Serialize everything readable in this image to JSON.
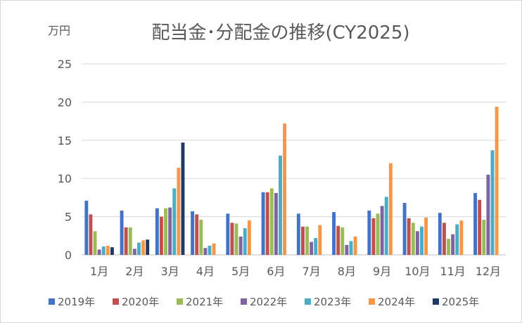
{
  "chart_data": {
    "type": "bar",
    "title": "配当金･分配金の推移(CY2025)",
    "yunit": "万円",
    "categories": [
      "1月",
      "2月",
      "3月",
      "4月",
      "5月",
      "6月",
      "7月",
      "8月",
      "9月",
      "10月",
      "11月",
      "12月"
    ],
    "ylim": [
      0,
      25
    ],
    "yticks": [
      "0",
      "5",
      "10",
      "15",
      "20",
      "25"
    ],
    "grid": true,
    "legend_position": "bottom",
    "series": [
      {
        "name": "2019年",
        "color": "#4472C4",
        "values": [
          7.1,
          5.8,
          6.1,
          5.7,
          5.4,
          8.2,
          5.4,
          5.6,
          5.8,
          6.8,
          5.5,
          8.1
        ]
      },
      {
        "name": "2020年",
        "color": "#C0504D",
        "values": [
          5.3,
          3.6,
          5.0,
          5.3,
          4.2,
          8.2,
          3.7,
          3.8,
          4.8,
          4.8,
          4.2,
          7.2
        ]
      },
      {
        "name": "2021年",
        "color": "#9BBB59",
        "values": [
          3.1,
          3.6,
          6.1,
          4.6,
          4.1,
          8.7,
          3.7,
          3.6,
          5.4,
          4.2,
          2.1,
          4.6
        ]
      },
      {
        "name": "2022年",
        "color": "#8064A2",
        "values": [
          0.7,
          0.8,
          6.2,
          0.9,
          2.4,
          8.1,
          1.7,
          1.3,
          6.4,
          3.1,
          2.7,
          10.5
        ]
      },
      {
        "name": "2023年",
        "color": "#4BACC6",
        "values": [
          1.1,
          1.6,
          8.7,
          1.2,
          3.5,
          13.0,
          2.2,
          1.8,
          7.6,
          3.7,
          4.0,
          13.7
        ]
      },
      {
        "name": "2024年",
        "color": "#F79646",
        "values": [
          1.2,
          1.9,
          11.4,
          1.5,
          4.5,
          17.2,
          3.9,
          2.4,
          12.0,
          4.9,
          4.5,
          19.4
        ]
      },
      {
        "name": "2025年",
        "color": "#1F3864",
        "values": [
          1.0,
          2.0,
          14.7,
          null,
          null,
          null,
          null,
          null,
          null,
          null,
          null,
          null
        ]
      }
    ]
  }
}
